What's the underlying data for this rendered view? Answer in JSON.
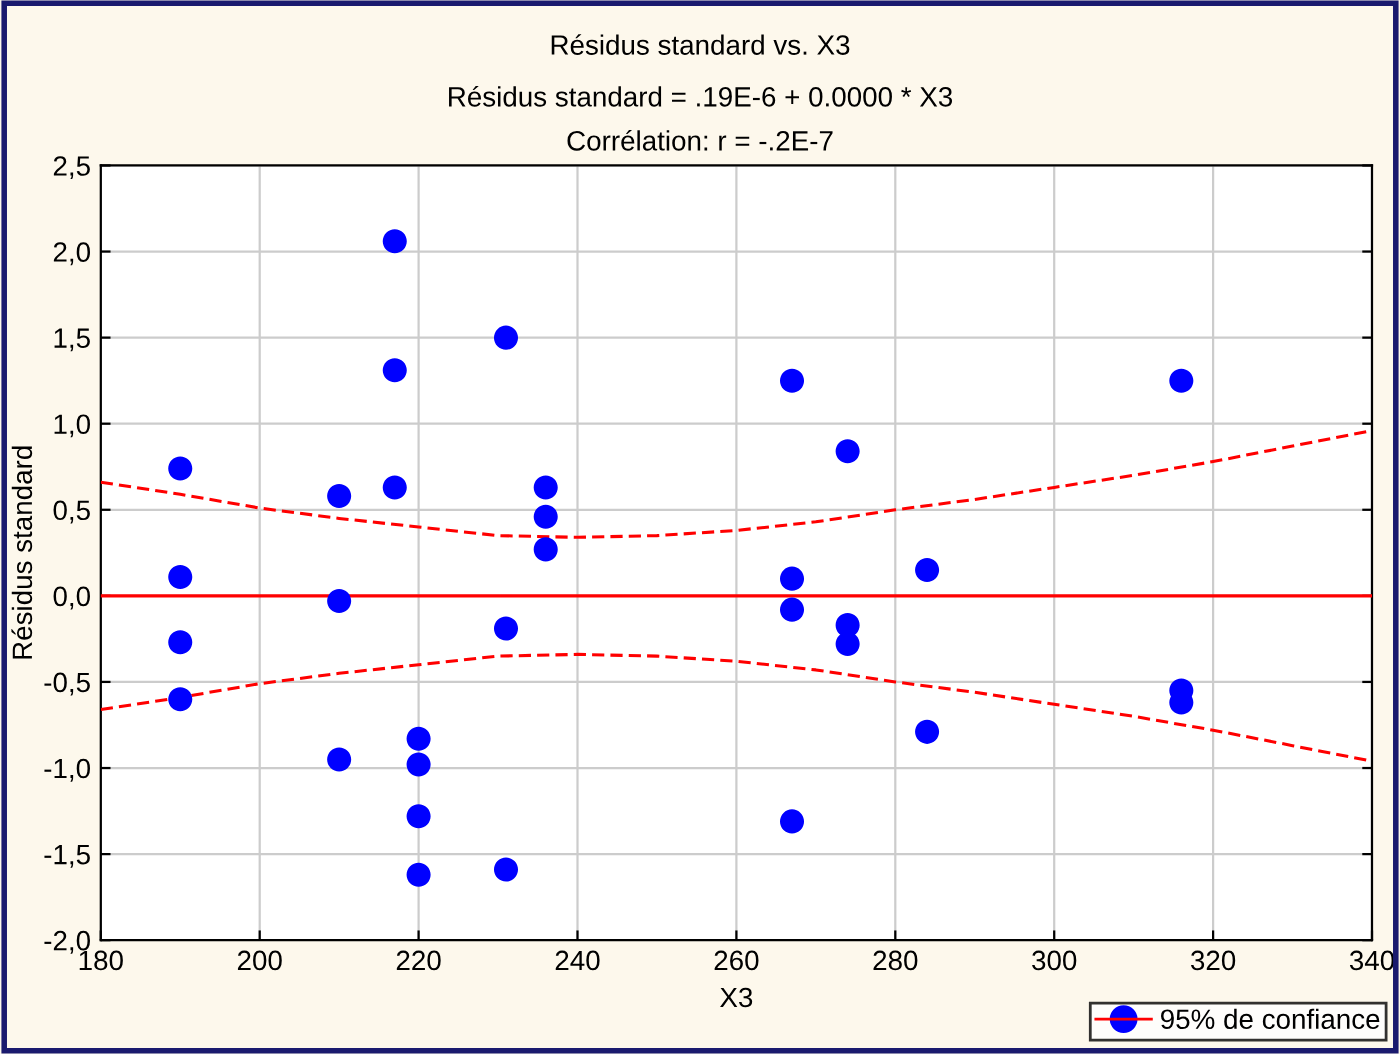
{
  "chart_data": {
    "type": "scatter",
    "title": "Résidus standard vs. X3",
    "subtitle": "Résidus standard = .19E-6 + 0.0000 * X3\nCorrélation: r = -.2E-7",
    "xlabel": "X3",
    "ylabel": "Résidus standard",
    "series": [
      {
        "color": "#0000ff",
        "marker": "circle",
        "x": [
          190,
          190,
          190,
          190,
          210,
          210,
          210,
          217,
          217,
          217,
          220,
          220,
          220,
          220,
          231,
          231,
          231,
          236,
          236,
          236,
          267,
          267,
          267,
          267,
          274,
          274,
          274,
          284,
          284,
          316,
          316,
          316
        ],
        "values": [
          0.74,
          0.11,
          -0.27,
          -0.6,
          0.58,
          -0.03,
          -0.95,
          2.06,
          1.31,
          0.63,
          -0.83,
          -0.98,
          -1.28,
          -1.62,
          1.5,
          -0.19,
          -1.59,
          0.63,
          0.46,
          0.27,
          1.25,
          0.1,
          -0.08,
          -1.31,
          0.84,
          -0.17,
          -0.28,
          0.15,
          -0.79,
          1.25,
          -0.55,
          -0.62
        ]
      },
      {
        "type": "line",
        "color": "#ff0000",
        "marker": "none",
        "line_style": "solid",
        "x": [
          180,
          340
        ],
        "values": [
          0,
          0
        ]
      },
      {
        "type": "line",
        "name": "95% de confiance",
        "color": "#ff0000",
        "marker": "none",
        "line_style": "dashed",
        "x": [
          180,
          190,
          200,
          210,
          220,
          230,
          240,
          250,
          260,
          270,
          280,
          290,
          300,
          310,
          320,
          330,
          340
        ],
        "values": [
          0.66,
          0.59,
          0.51,
          0.45,
          0.4,
          0.35,
          0.34,
          0.35,
          0.38,
          0.43,
          0.5,
          0.56,
          0.63,
          0.7,
          0.78,
          0.87,
          0.96
        ]
      },
      {
        "type": "line",
        "color": "#ff0000",
        "marker": "none",
        "line_style": "dashed",
        "x": [
          180,
          190,
          200,
          210,
          220,
          230,
          240,
          250,
          260,
          270,
          280,
          290,
          300,
          310,
          320,
          330,
          340
        ],
        "values": [
          -0.66,
          -0.59,
          -0.51,
          -0.45,
          -0.4,
          -0.35,
          -0.34,
          -0.35,
          -0.38,
          -0.43,
          -0.5,
          -0.56,
          -0.63,
          -0.7,
          -0.78,
          -0.87,
          -0.96
        ]
      }
    ],
    "xlim": [
      180,
      340
    ],
    "ylim": [
      -2.0,
      2.5
    ],
    "xticks": [
      180,
      200,
      220,
      240,
      260,
      280,
      300,
      320,
      340
    ],
    "yticks": [
      {
        "value": -2.0,
        "label": "-2,0"
      },
      {
        "value": -1.5,
        "label": "-1,5"
      },
      {
        "value": -1.0,
        "label": "-1,0"
      },
      {
        "value": -0.5,
        "label": "-0,5"
      },
      {
        "value": 0.0,
        "label": "0,0"
      },
      {
        "value": 0.5,
        "label": "0,5"
      },
      {
        "value": 1.0,
        "label": "1,0"
      },
      {
        "value": 1.5,
        "label": "1,5"
      },
      {
        "value": 2.0,
        "label": "2,0"
      },
      {
        "value": 2.5,
        "label": "2,5"
      }
    ],
    "grid": true,
    "legend": "bottom right"
  }
}
